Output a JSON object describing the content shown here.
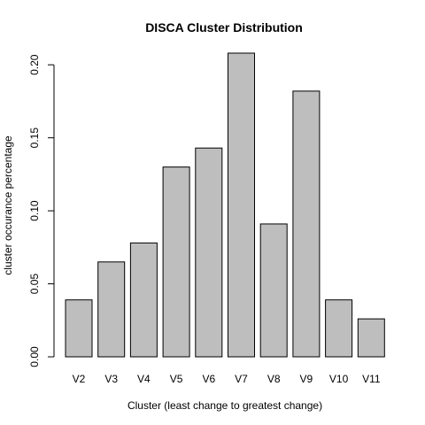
{
  "chart_data": {
    "type": "bar",
    "title": "DISCA Cluster Distribution",
    "xlabel": "Cluster (least change to greatest change)",
    "ylabel": "cluster occurance percentage",
    "categories": [
      "V2",
      "V3",
      "V4",
      "V5",
      "V6",
      "V7",
      "V8",
      "V9",
      "V10",
      "V11"
    ],
    "values": [
      0.039,
      0.065,
      0.078,
      0.13,
      0.143,
      0.208,
      0.091,
      0.182,
      0.039,
      0.026
    ],
    "ylim": [
      0,
      0.208
    ],
    "yticks": [
      0.0,
      0.05,
      0.1,
      0.15,
      0.2
    ],
    "ytick_labels": [
      "0.00",
      "0.05",
      "0.10",
      "0.15",
      "0.20"
    ],
    "grid": false,
    "bar_color": "#bebebe",
    "edge_color": "#000000"
  }
}
